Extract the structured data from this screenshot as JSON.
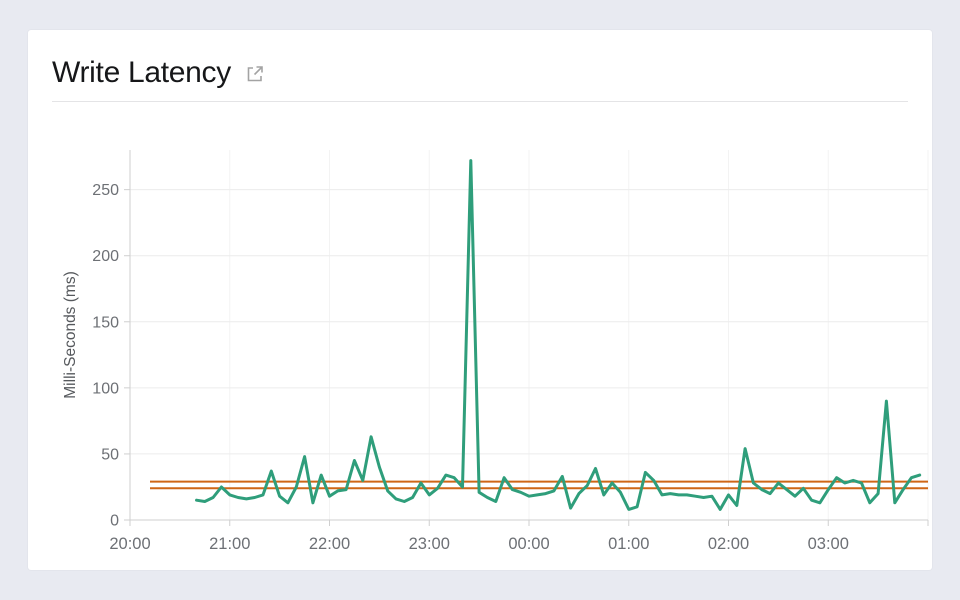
{
  "page": {
    "background_color": "#e8eaf1"
  },
  "card": {
    "title": "Write Latency",
    "external_link_icon": "external-link-icon",
    "background_color": "#ffffff"
  },
  "chart_data": {
    "type": "line",
    "title": "Write Latency",
    "xlabel": "",
    "ylabel": "Milli-Seconds (ms)",
    "ylim": [
      0,
      280
    ],
    "y_ticks": [
      "0",
      "50",
      "100",
      "150",
      "200",
      "250"
    ],
    "x_ticks": [
      "20:00",
      "21:00",
      "22:00",
      "23:00",
      "00:00",
      "01:00",
      "02:00",
      "03:00"
    ],
    "x_range_hours": 8,
    "grid": true,
    "legend_position": "none",
    "series": [
      {
        "name": "write-latency",
        "color": "#2f9e7b",
        "unit": "ms",
        "times": [
          "20:40",
          "20:45",
          "20:50",
          "20:55",
          "21:00",
          "21:05",
          "21:10",
          "21:15",
          "21:20",
          "21:25",
          "21:30",
          "21:35",
          "21:40",
          "21:45",
          "21:50",
          "21:55",
          "22:00",
          "22:05",
          "22:10",
          "22:15",
          "22:20",
          "22:25",
          "22:30",
          "22:35",
          "22:40",
          "22:45",
          "22:50",
          "22:55",
          "23:00",
          "23:05",
          "23:10",
          "23:15",
          "23:20",
          "23:25",
          "23:30",
          "23:35",
          "23:40",
          "23:45",
          "23:50",
          "23:55",
          "00:00",
          "00:05",
          "00:10",
          "00:15",
          "00:20",
          "00:25",
          "00:30",
          "00:35",
          "00:40",
          "00:45",
          "00:50",
          "00:55",
          "01:00",
          "01:05",
          "01:10",
          "01:15",
          "01:20",
          "01:25",
          "01:30",
          "01:35",
          "01:40",
          "01:45",
          "01:50",
          "01:55",
          "02:00",
          "02:05",
          "02:10",
          "02:15",
          "02:20",
          "02:25",
          "02:30",
          "02:35",
          "02:40",
          "02:45",
          "02:50",
          "02:55",
          "03:00",
          "03:05",
          "03:10",
          "03:15",
          "03:20",
          "03:25",
          "03:30",
          "03:35",
          "03:40",
          "03:45",
          "03:50",
          "03:55"
        ],
        "values": [
          15,
          14,
          17,
          25,
          19,
          17,
          16,
          17,
          19,
          37,
          18,
          13,
          25,
          48,
          13,
          34,
          18,
          22,
          23,
          45,
          30,
          63,
          40,
          22,
          16,
          14,
          17,
          28,
          19,
          24,
          34,
          32,
          25,
          272,
          21,
          17,
          14,
          32,
          23,
          21,
          18,
          19,
          20,
          22,
          33,
          9,
          20,
          26,
          39,
          19,
          28,
          21,
          8,
          10,
          36,
          30,
          19,
          20,
          19,
          19,
          18,
          17,
          18,
          8,
          19,
          11,
          54,
          28,
          23,
          20,
          28,
          23,
          18,
          24,
          15,
          13,
          23,
          32,
          28,
          30,
          28,
          13,
          20,
          90,
          13,
          23,
          32,
          34
        ]
      }
    ],
    "reference_lines": [
      {
        "value": 29,
        "color": "#cf6616"
      },
      {
        "value": 24,
        "color": "#cf6616"
      }
    ]
  }
}
